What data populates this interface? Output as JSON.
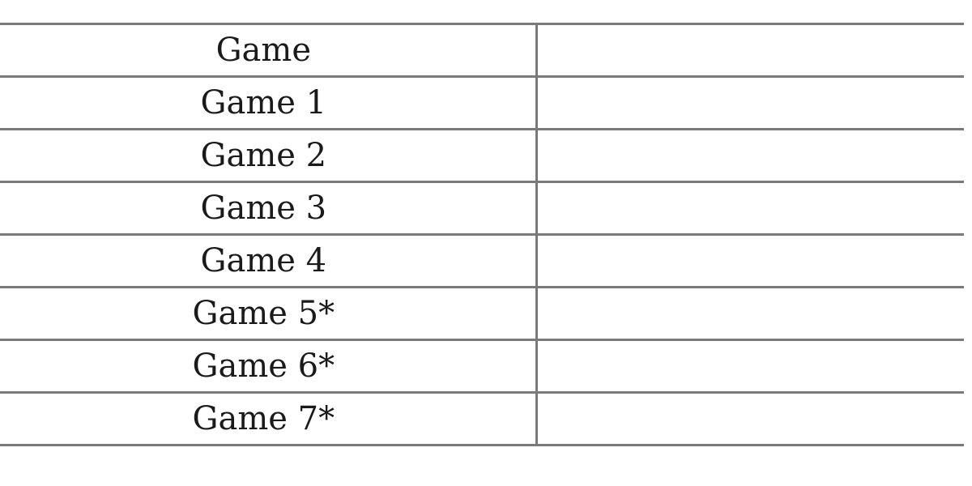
{
  "table": {
    "header": [
      "Game",
      ""
    ],
    "rows": [
      [
        "Game 1",
        ""
      ],
      [
        "Game 2",
        ""
      ],
      [
        "Game 3",
        ""
      ],
      [
        "Game 4",
        ""
      ],
      [
        "Game 5*",
        ""
      ],
      [
        "Game 6*",
        ""
      ],
      [
        "Game 7*",
        ""
      ]
    ]
  }
}
